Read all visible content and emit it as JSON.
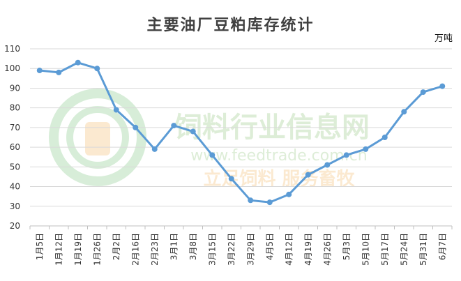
{
  "chart_data": {
    "type": "line",
    "title": "主要油厂豆粕库存统计",
    "unit_label": "万吨",
    "xlabel": "",
    "ylabel": "",
    "ylim": [
      20,
      110
    ],
    "ytick_step": 10,
    "grid": true,
    "line_color": "#5b9bd5",
    "categories": [
      "1月5日",
      "1月12日",
      "1月19日",
      "1月26日",
      "2月2日",
      "2月16日",
      "2月23日",
      "3月1日",
      "3月8日",
      "3月15日",
      "3月22日",
      "3月29日",
      "4月5日",
      "4月12日",
      "4月19日",
      "4月26日",
      "5月3日",
      "5月10日",
      "5月17日",
      "5月24日",
      "5月31日",
      "6月7日"
    ],
    "series": [
      {
        "values": [
          99,
          98,
          103,
          100,
          79,
          70,
          59,
          71,
          68,
          56,
          44,
          33,
          32,
          36,
          46,
          51,
          56,
          59,
          65,
          78,
          88,
          91
        ]
      }
    ]
  },
  "watermark": {
    "name": "饲料行业信息网",
    "url": "www.feedtrade.com.cn",
    "slogan": "立足饲料  服务畜牧"
  }
}
